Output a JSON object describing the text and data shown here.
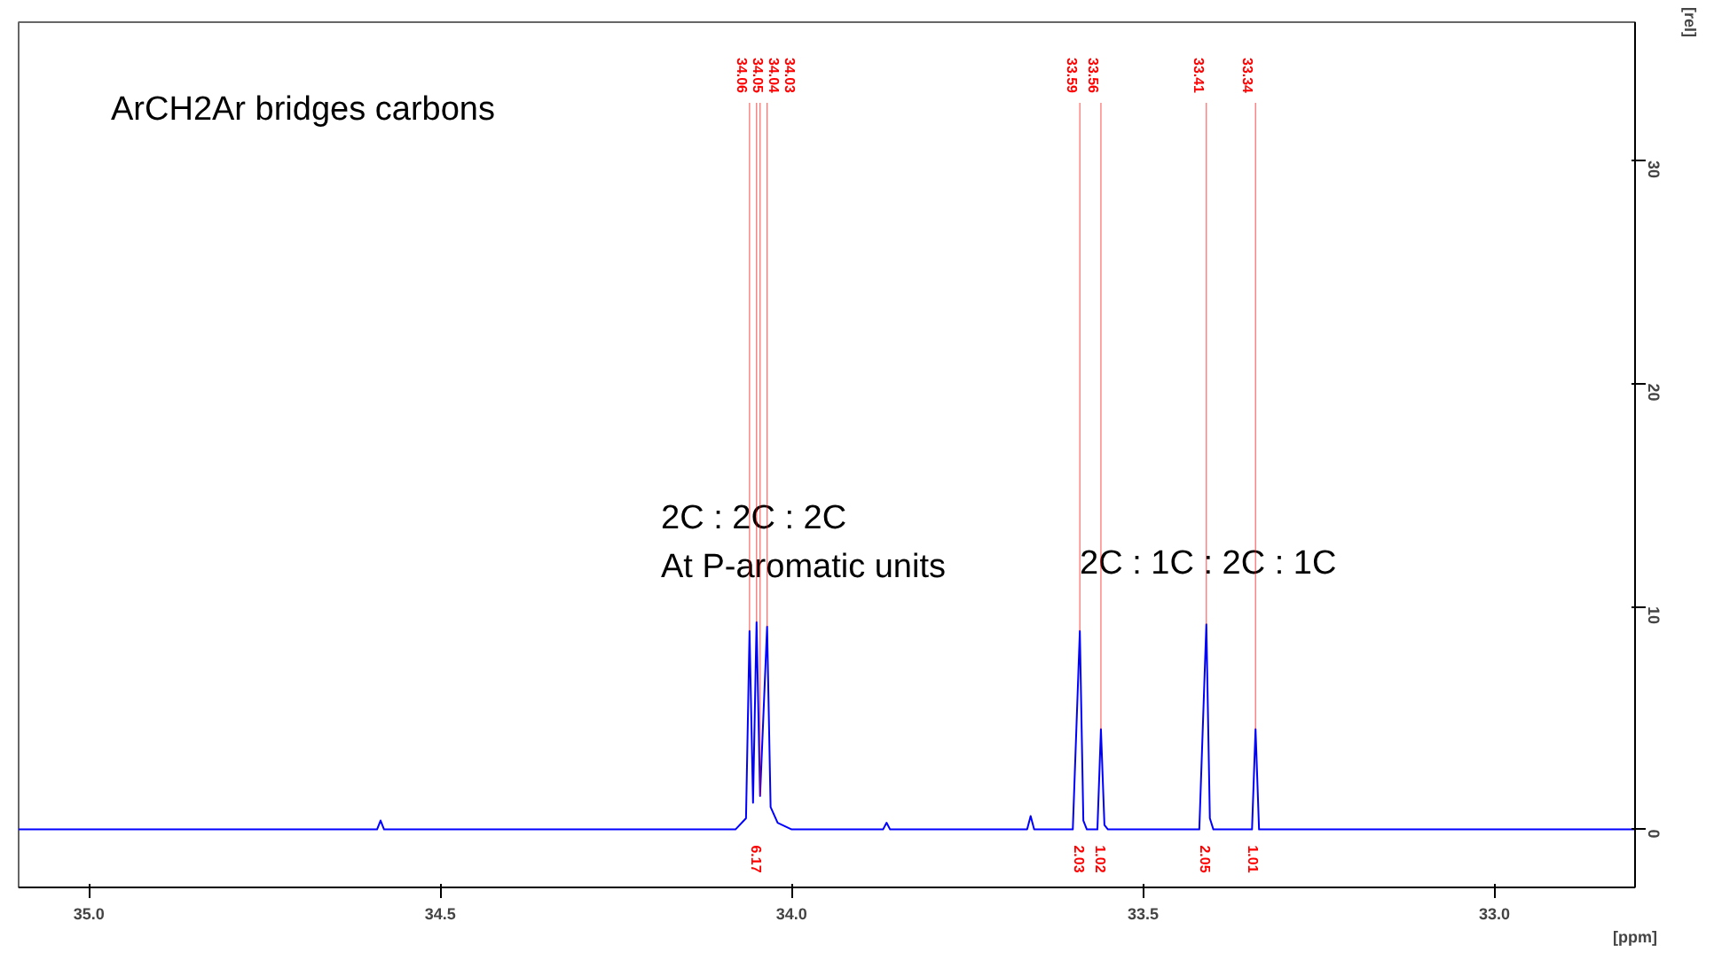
{
  "chart_data": {
    "type": "line",
    "xlabel": "[ppm]",
    "ylabel": "[rel]",
    "xlim": [
      35.1,
      32.8
    ],
    "ylim": [
      -2.6,
      36.2
    ],
    "xticks": [
      {
        "value": 35,
        "label": "35.0"
      },
      {
        "value": 34.5,
        "label": "34.5"
      },
      {
        "value": 34,
        "label": "34.0"
      },
      {
        "value": 33.5,
        "label": "33.5"
      },
      {
        "value": 33,
        "label": "33.0"
      }
    ],
    "yticks": [
      0,
      10,
      20,
      30
    ],
    "grid": false,
    "series": [
      {
        "color": "#0000ff",
        "x": [
          35.1,
          34.8,
          34.59,
          34.585,
          34.58,
          34.3,
          34.08,
          34.065,
          34.06,
          34.055,
          34.05,
          34.045,
          34.035,
          34.03,
          34.02,
          34.0,
          33.87,
          33.865,
          33.86,
          33.665,
          33.66,
          33.655,
          33.6,
          33.59,
          33.585,
          33.58,
          33.565,
          33.56,
          33.555,
          33.55,
          33.42,
          33.41,
          33.405,
          33.4,
          33.345,
          33.34,
          33.335,
          32.8
        ],
        "values": [
          0,
          0,
          0,
          0.4,
          0,
          0,
          0,
          0.5,
          8.9,
          1.2,
          9.3,
          1.5,
          9.1,
          1.0,
          0.3,
          0,
          0,
          0.3,
          0,
          0,
          0.6,
          0,
          0,
          8.9,
          0.4,
          0,
          0,
          4.5,
          0.2,
          0,
          0,
          9.2,
          0.5,
          0,
          0,
          4.5,
          0,
          0
        ]
      }
    ],
    "annotations": [
      "ArCH2Ar bridges carbons",
      "2C : 2C : 2C\nAt P-aromatic units",
      "2C : 1C : 2C : 1C",
      "6.17",
      "2.03",
      "1.02",
      "2.05",
      "1.01",
      {
        "text": "34.06",
        "x": 34.06,
        "y": 8.9
      },
      {
        "text": "34.05",
        "x": 34.05,
        "y": 9.3
      },
      {
        "text": "34.04",
        "x": 34.045,
        "y": 1.5
      },
      {
        "text": "34.03",
        "x": 34.035,
        "y": 9.1
      },
      {
        "text": "33.59",
        "x": 33.59,
        "y": 8.9
      },
      {
        "text": "33.56",
        "x": 33.56,
        "y": 4.5
      },
      {
        "text": "33.41",
        "x": 33.41,
        "y": 9.2
      },
      {
        "text": "33.34",
        "x": 33.34,
        "y": 4.5
      }
    ]
  }
}
